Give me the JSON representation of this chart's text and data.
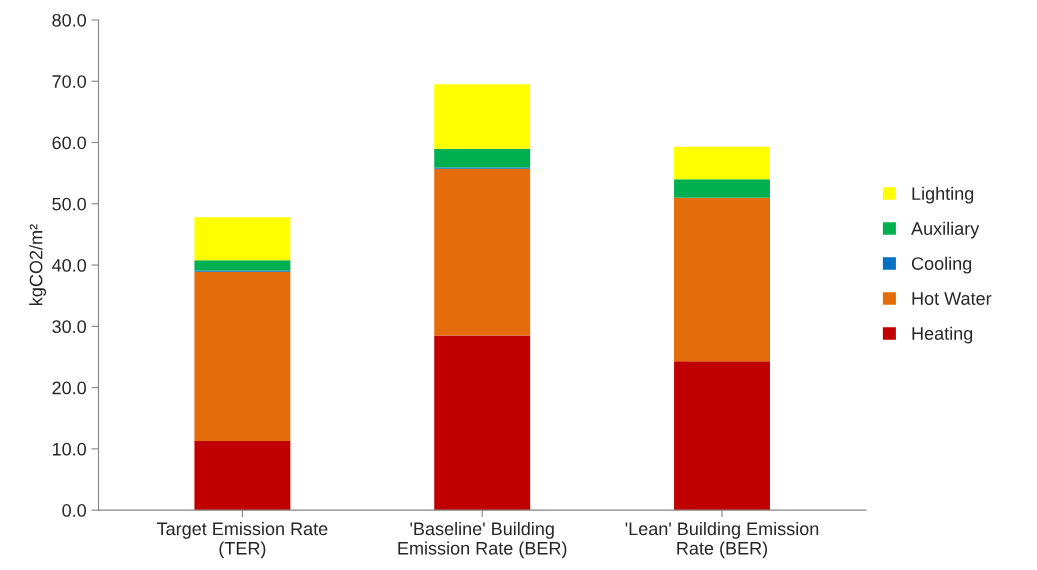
{
  "chart_data": {
    "type": "bar",
    "stacked": true,
    "ylabel": "kgCO2/m²",
    "categories": [
      "Target Emission Rate\n(TER)",
      "'Baseline' Building\nEmission Rate (BER)",
      "'Lean' Building Emission\nRate (BER)"
    ],
    "series": [
      {
        "name": "Heating",
        "color": "#c00000",
        "values": [
          11.3,
          28.5,
          24.3
        ]
      },
      {
        "name": "Hot Water",
        "color": "#e46c0a",
        "values": [
          27.6,
          27.2,
          26.7
        ]
      },
      {
        "name": "Cooling",
        "color": "#0070c0",
        "values": [
          0.2,
          0.2,
          0.0
        ]
      },
      {
        "name": "Auxiliary",
        "color": "#00b050",
        "values": [
          1.7,
          3.1,
          3.0
        ]
      },
      {
        "name": "Lighting",
        "color": "#ffff00",
        "values": [
          7.0,
          10.5,
          5.3
        ]
      }
    ],
    "ylim": [
      0,
      80
    ],
    "yticks": [
      {
        "value": 0,
        "label": "0.0"
      },
      {
        "value": 10,
        "label": "10.0"
      },
      {
        "value": 20,
        "label": "20.0"
      },
      {
        "value": 30,
        "label": "30.0"
      },
      {
        "value": 40,
        "label": "40.0"
      },
      {
        "value": 50,
        "label": "50.0"
      },
      {
        "value": 60,
        "label": "60.0"
      },
      {
        "value": 70,
        "label": "70.0"
      },
      {
        "value": 80,
        "label": "80.0"
      }
    ],
    "grid": false,
    "legend": "right"
  }
}
